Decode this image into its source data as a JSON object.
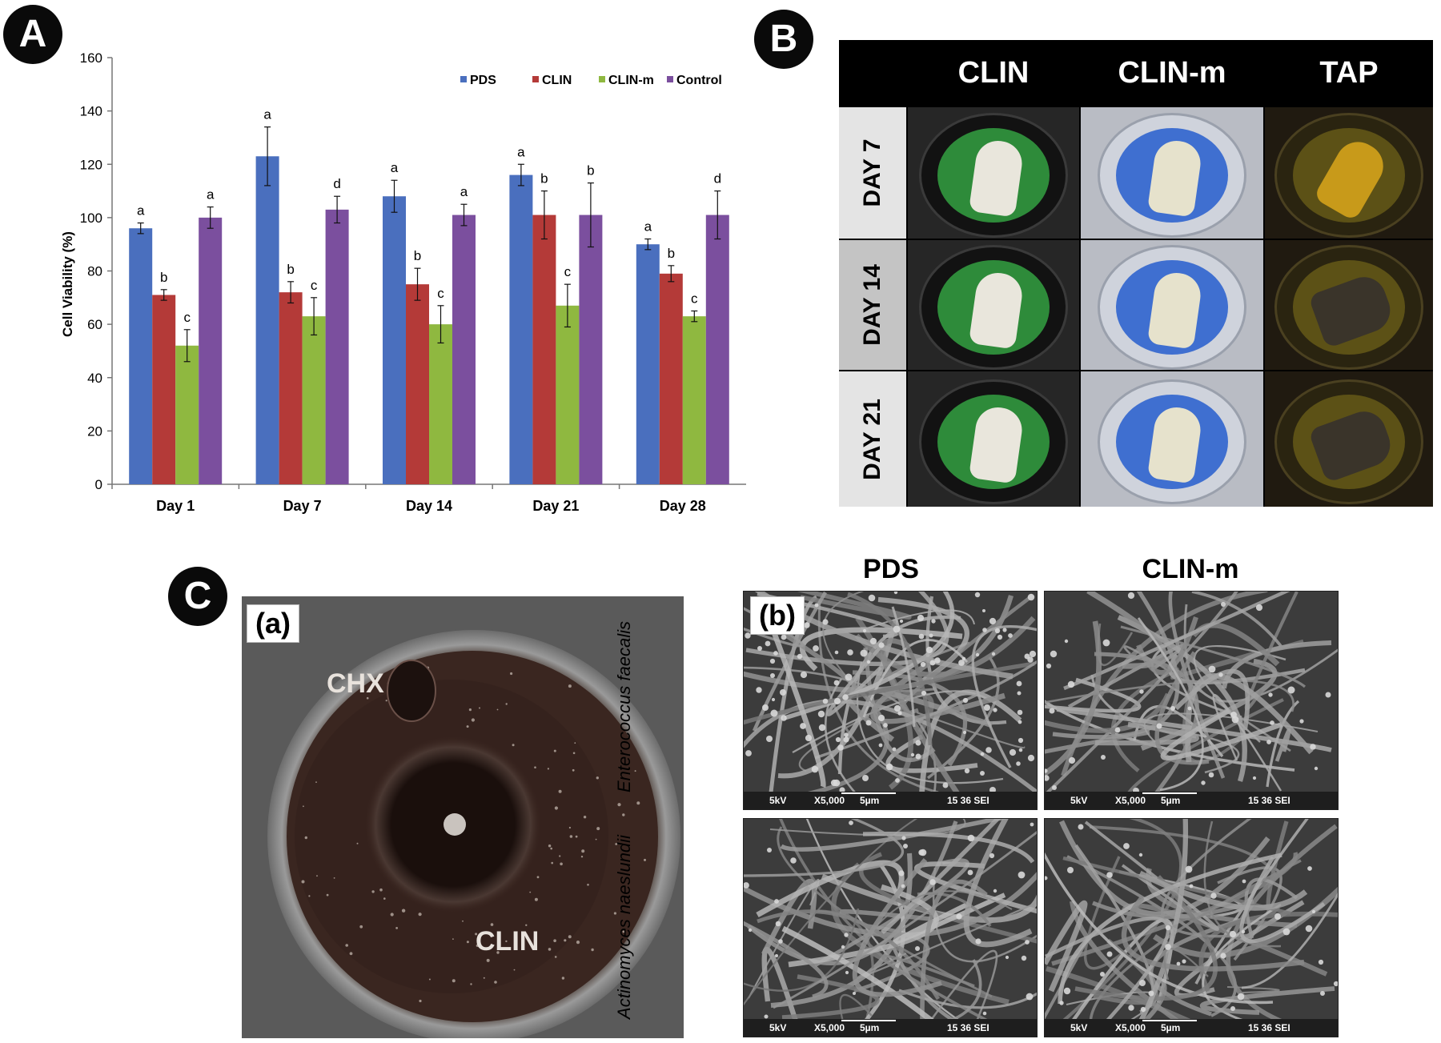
{
  "panels": {
    "a": {
      "badge": "A"
    },
    "b": {
      "badge": "B",
      "columns": [
        "CLIN",
        "CLIN-m",
        "TAP"
      ],
      "rows": [
        "DAY 7",
        "DAY 14",
        "DAY 21"
      ],
      "colors": {
        "CLIN": "#2e8b3a",
        "CLIN-m": "#3f6fd0",
        "TAP": "#6e6018"
      }
    },
    "c": {
      "badge": "C",
      "plate": {
        "tag": "(a)",
        "label_chx": "CHX",
        "label_clin": "CLIN"
      },
      "sem": {
        "tag": "(b)",
        "columns": [
          "PDS",
          "CLIN-m"
        ],
        "rows": [
          "Enterococcus faecalis",
          "Actinomyces naeslundii"
        ],
        "footer": {
          "kv": "5kV",
          "mag": "X5,000",
          "scale": "5µm",
          "id": "15 36 SEI"
        }
      }
    }
  },
  "chart_data": {
    "type": "bar",
    "ylabel": "Cell Viability (%)",
    "xlabel": "",
    "ylim": [
      0,
      160
    ],
    "yticks": [
      0,
      20,
      40,
      60,
      80,
      100,
      120,
      140,
      160
    ],
    "legend_position": "top-right",
    "categories": [
      "Day 1",
      "Day 7",
      "Day 14",
      "Day 21",
      "Day 28"
    ],
    "series": [
      {
        "name": "PDS",
        "color": "#4a6fbe",
        "values": [
          96,
          123,
          108,
          116,
          90
        ],
        "errors": [
          2,
          11,
          6,
          4,
          2
        ],
        "labels": [
          "a",
          "a",
          "a",
          "a",
          "a"
        ]
      },
      {
        "name": "CLIN",
        "color": "#b43a38",
        "values": [
          71,
          72,
          75,
          101,
          79
        ],
        "errors": [
          2,
          4,
          6,
          9,
          3
        ],
        "labels": [
          "b",
          "b",
          "b",
          "b",
          "b"
        ]
      },
      {
        "name": "CLIN-m",
        "color": "#8fb840",
        "values": [
          52,
          63,
          60,
          67,
          63
        ],
        "errors": [
          6,
          7,
          7,
          8,
          2
        ],
        "labels": [
          "c",
          "c",
          "c",
          "c",
          "c"
        ]
      },
      {
        "name": "Control",
        "color": "#7b4f9e",
        "values": [
          100,
          103,
          101,
          101,
          101
        ],
        "errors": [
          4,
          5,
          4,
          12,
          9
        ],
        "labels": [
          "a",
          "d",
          "a",
          "b",
          "d"
        ]
      }
    ]
  }
}
